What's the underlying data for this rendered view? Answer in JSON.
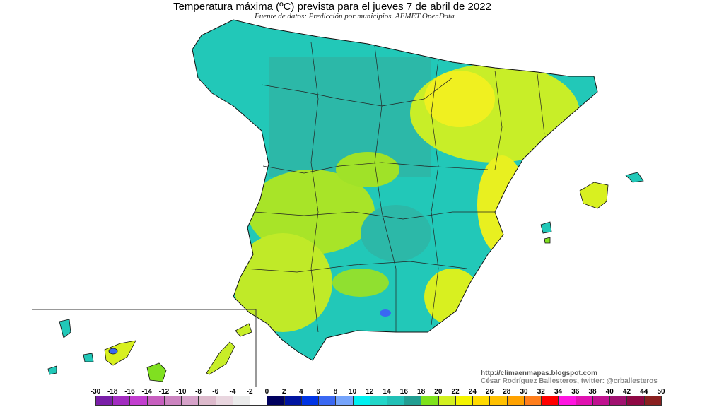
{
  "title": "Temperatura máxima (ºC) prevista para el jueves 7 de abril de 2022",
  "subtitle": "Fuente de datos: Predicción por municipios. AEMET OpenData",
  "credits": {
    "url": "http://climaenmapas.blogspot.com",
    "author": "César Rodríguez Ballesteros, twitter: @crballesteros"
  },
  "legend": {
    "unit": "ºC",
    "labels": [
      "-30",
      "-18",
      "-16",
      "-14",
      "-12",
      "-10",
      "-8",
      "-6",
      "-4",
      "-2",
      "0",
      "2",
      "4",
      "6",
      "8",
      "10",
      "12",
      "14",
      "16",
      "18",
      "20",
      "22",
      "24",
      "26",
      "28",
      "30",
      "32",
      "34",
      "36",
      "38",
      "40",
      "42",
      "44",
      "50"
    ],
    "colors": [
      "#7a1fa8",
      "#a22cc0",
      "#c23ecf",
      "#c75fbf",
      "#cc84c0",
      "#d6a2c9",
      "#ddbacc",
      "#e9d6df",
      "#ebebeb",
      "#ffffff",
      "#00005e",
      "#0014a0",
      "#0034e4",
      "#3a68f2",
      "#76a4fb",
      "#00f0f0",
      "#22d6c8",
      "#22c0b6",
      "#229e92",
      "#7ee21c",
      "#d2f020",
      "#f4f400",
      "#ffda00",
      "#ffc000",
      "#ffa200",
      "#ff7e1c",
      "#ff0000",
      "#ff14e0",
      "#e012b0",
      "#c01290",
      "#a01270",
      "#8e0844",
      "#8a2020"
    ]
  },
  "map_colors": {
    "cool": "#22c8b8",
    "teal": "#2cb8a8",
    "warm": "#b8e830",
    "mild": "#80e020",
    "hot": "#f0f020",
    "sea": "#ffffff",
    "border": "#111111"
  }
}
